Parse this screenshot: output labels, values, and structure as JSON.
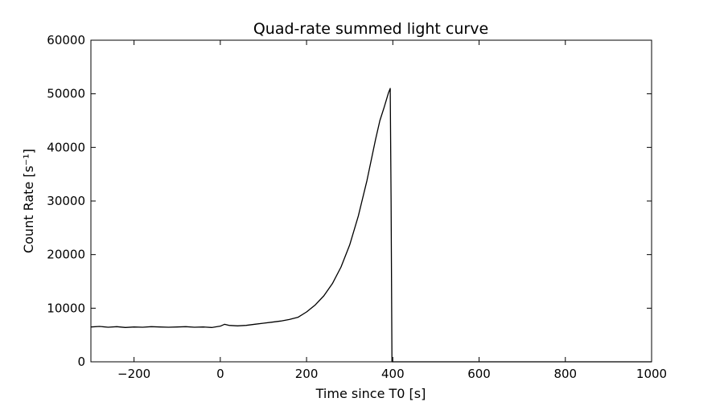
{
  "chart_data": {
    "type": "line",
    "title": "Quad-rate summed light curve",
    "xlabel": "Time since T0 [s]",
    "ylabel": "Count Rate [s⁻¹]",
    "xlim": [
      -300,
      1000
    ],
    "ylim": [
      0,
      60000
    ],
    "xticks": [
      -200,
      0,
      200,
      400,
      600,
      800,
      1000
    ],
    "xtick_labels": [
      "−200",
      "0",
      "200",
      "400",
      "600",
      "800",
      "1000"
    ],
    "yticks": [
      0,
      10000,
      20000,
      30000,
      40000,
      50000,
      60000
    ],
    "ytick_labels": [
      "0",
      "10000",
      "20000",
      "30000",
      "40000",
      "50000",
      "60000"
    ],
    "grid": false,
    "series": [
      {
        "color": "#000000",
        "x": [
          -300,
          -280,
          -260,
          -240,
          -220,
          -200,
          -180,
          -160,
          -140,
          -120,
          -100,
          -80,
          -60,
          -40,
          -20,
          0,
          10,
          20,
          40,
          60,
          80,
          100,
          120,
          140,
          160,
          180,
          200,
          220,
          240,
          260,
          280,
          300,
          320,
          340,
          360,
          370,
          380,
          390,
          394,
          396,
          398,
          400,
          450,
          500,
          600,
          700,
          800,
          900,
          1000
        ],
        "y": [
          6500,
          6600,
          6450,
          6550,
          6400,
          6500,
          6450,
          6550,
          6500,
          6450,
          6500,
          6550,
          6450,
          6500,
          6400,
          6650,
          7000,
          6800,
          6700,
          6800,
          7000,
          7200,
          7400,
          7600,
          7900,
          8300,
          9300,
          10600,
          12300,
          14600,
          17700,
          21800,
          27200,
          33800,
          41500,
          45000,
          47500,
          50200,
          51000,
          30000,
          0,
          0,
          0,
          0,
          0,
          0,
          0,
          0,
          0
        ]
      }
    ]
  }
}
